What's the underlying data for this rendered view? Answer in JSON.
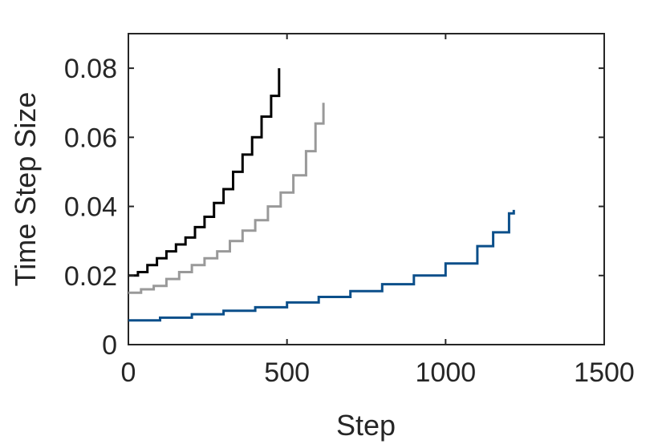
{
  "chart_data": {
    "type": "line",
    "title": "",
    "xlabel": "Step",
    "ylabel": "Time Step Size",
    "xlim": [
      0,
      1500
    ],
    "ylim": [
      0,
      0.09
    ],
    "xticks": [
      0,
      500,
      1000,
      1500
    ],
    "xtick_labels": [
      "0",
      "500",
      "1000",
      "1500"
    ],
    "yticks": [
      0,
      0.02,
      0.04,
      0.06,
      0.08
    ],
    "ytick_labels": [
      "0",
      "0.02",
      "0.04",
      "0.06",
      "0.08"
    ],
    "grid": false,
    "legend": "none",
    "series": [
      {
        "color": "#000000",
        "x": [
          0,
          30,
          60,
          90,
          120,
          150,
          180,
          210,
          240,
          270,
          300,
          330,
          360,
          390,
          420,
          450,
          475
        ],
        "y": [
          0.02,
          0.021,
          0.023,
          0.025,
          0.027,
          0.029,
          0.031,
          0.034,
          0.037,
          0.041,
          0.045,
          0.05,
          0.055,
          0.06,
          0.066,
          0.072,
          0.08
        ]
      },
      {
        "color": "#999999",
        "x": [
          0,
          40,
          80,
          120,
          160,
          200,
          240,
          280,
          320,
          360,
          400,
          440,
          480,
          520,
          560,
          590,
          615
        ],
        "y": [
          0.015,
          0.016,
          0.017,
          0.019,
          0.021,
          0.023,
          0.025,
          0.027,
          0.03,
          0.033,
          0.036,
          0.04,
          0.044,
          0.049,
          0.056,
          0.064,
          0.07
        ]
      },
      {
        "color": "#0b4f8a",
        "x": [
          0,
          100,
          200,
          300,
          400,
          500,
          600,
          700,
          800,
          900,
          1000,
          1100,
          1150,
          1200,
          1215
        ],
        "y": [
          0.007,
          0.0078,
          0.0088,
          0.0098,
          0.0108,
          0.0122,
          0.0138,
          0.0155,
          0.0175,
          0.02,
          0.0235,
          0.0285,
          0.0325,
          0.038,
          0.039
        ]
      }
    ]
  }
}
